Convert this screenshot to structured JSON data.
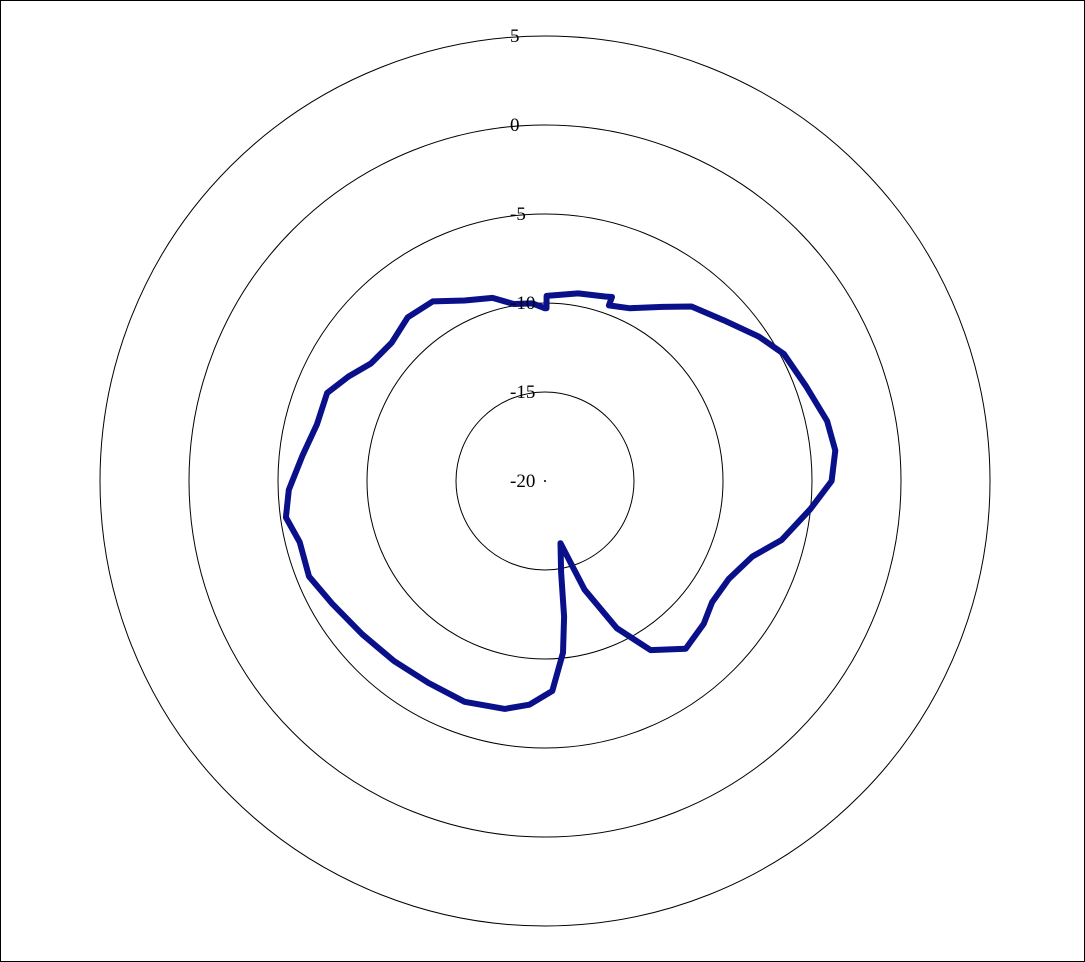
{
  "chart_data": {
    "type": "line",
    "projection": "polar",
    "title": "",
    "grid": true,
    "legend": "none",
    "r_ticks": [
      -20,
      -15,
      -10,
      -5,
      0,
      5
    ],
    "r_tick_labels": [
      "-20",
      "-15",
      "-10",
      "-5",
      "0",
      "5"
    ],
    "rlim": [
      -20,
      5
    ],
    "theta_unit": "degrees",
    "theta_direction": "clockwise",
    "theta_zero": "top",
    "series": [
      {
        "color": "#0a0f8a",
        "theta": [
          0,
          0.5,
          0.5,
          10,
          18,
          20,
          20,
          26,
          34,
          40,
          48,
          56,
          62,
          70,
          78,
          84,
          90,
          96,
          104,
          110,
          118,
          126,
          132,
          140,
          148,
          154,
          160,
          166,
          170,
          172,
          174,
          178,
          184,
          190,
          200,
          210,
          220,
          230,
          240,
          248,
          256,
          262,
          268,
          276,
          284,
          292,
          298,
          304,
          312,
          320,
          328,
          336,
          344,
          350,
          356,
          360
        ],
        "r": [
          -10.3,
          -10.3,
          -9.6,
          -9.3,
          -9.1,
          -9.0,
          -9.5,
          -9.2,
          -8.2,
          -7.2,
          -6.5,
          -5.5,
          -4.8,
          -4.4,
          -3.8,
          -3.6,
          -3.9,
          -5.0,
          -6.3,
          -7.6,
          -8.3,
          -8.4,
          -8.0,
          -7.7,
          -8.8,
          -10.8,
          -13.5,
          -16.4,
          -14.8,
          -12.3,
          -10.3,
          -8.2,
          -7.4,
          -7.0,
          -6.8,
          -6.9,
          -6.8,
          -6.6,
          -6.2,
          -5.7,
          -5.8,
          -5.3,
          -5.6,
          -6.3,
          -6.8,
          -6.8,
          -7.5,
          -8.2,
          -8.4,
          -8.0,
          -8.1,
          -8.9,
          -9.3,
          -9.9,
          -10.0,
          -10.3
        ]
      }
    ]
  }
}
